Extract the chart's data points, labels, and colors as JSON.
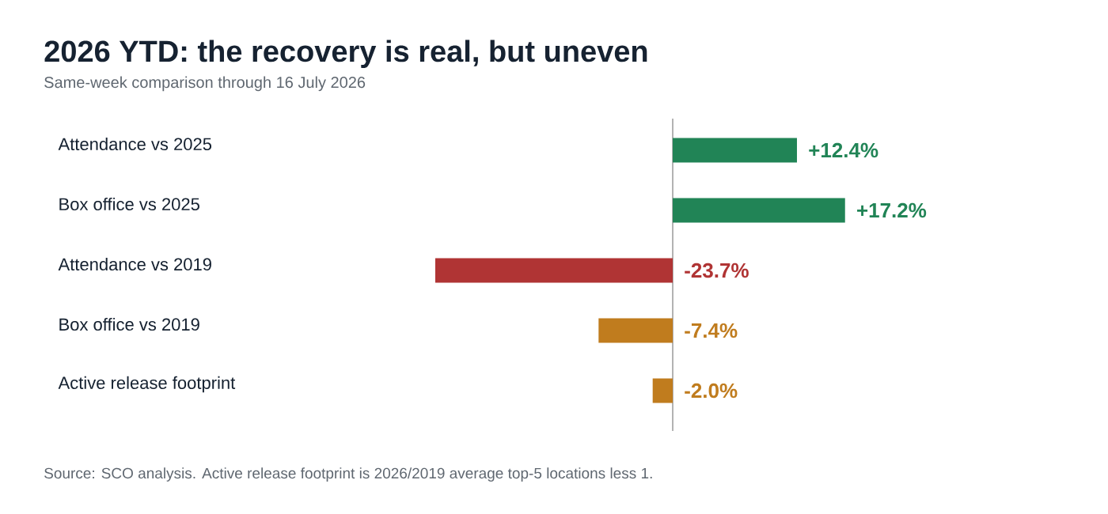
{
  "chart_data": {
    "type": "bar",
    "orientation": "horizontal",
    "title": "2026 YTD: the recovery is real, but uneven",
    "subtitle": "Same-week comparison through 16 July 2026",
    "categories": [
      "Attendance vs 2025",
      "Box office vs 2025",
      "Attendance vs 2019",
      "Box office vs 2019",
      "Active release footprint"
    ],
    "values": [
      12.4,
      17.2,
      -23.7,
      -7.4,
      -2.0
    ],
    "colors": [
      "#218456",
      "#218456",
      "#b03434",
      "#c07c1e",
      "#c07c1e"
    ],
    "value_labels": [
      "+12.4%",
      "+17.2%",
      "-23.7%",
      "-7.4%",
      "-2.0%"
    ],
    "tick_labels": "y",
    "annotations": [
      "Source: SCO analysis. Active release footprint is 2026/2019 average top-5 locations less 1."
    ]
  }
}
